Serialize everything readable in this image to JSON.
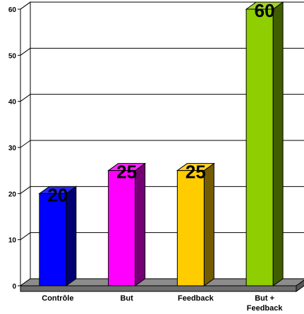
{
  "chart_data": {
    "type": "bar",
    "categories": [
      "Contrôle",
      "But",
      "Feedback",
      "But + Feedback"
    ],
    "category_lines": [
      [
        "Contrôle"
      ],
      [
        "But"
      ],
      [
        "Feedback"
      ],
      [
        "But +",
        "Feedback"
      ]
    ],
    "values": [
      20,
      25,
      25,
      60
    ],
    "data_labels": [
      "20",
      "25",
      "25",
      "60"
    ],
    "bar_colors": [
      "#0000ff",
      "#ff00ff",
      "#ffcc00",
      "#8fce00"
    ],
    "ylim": [
      0,
      60
    ],
    "yticks": [
      0,
      10,
      20,
      30,
      40,
      50,
      60
    ],
    "grid": true,
    "style": "3d",
    "title": "",
    "xlabel": "",
    "ylabel": ""
  }
}
